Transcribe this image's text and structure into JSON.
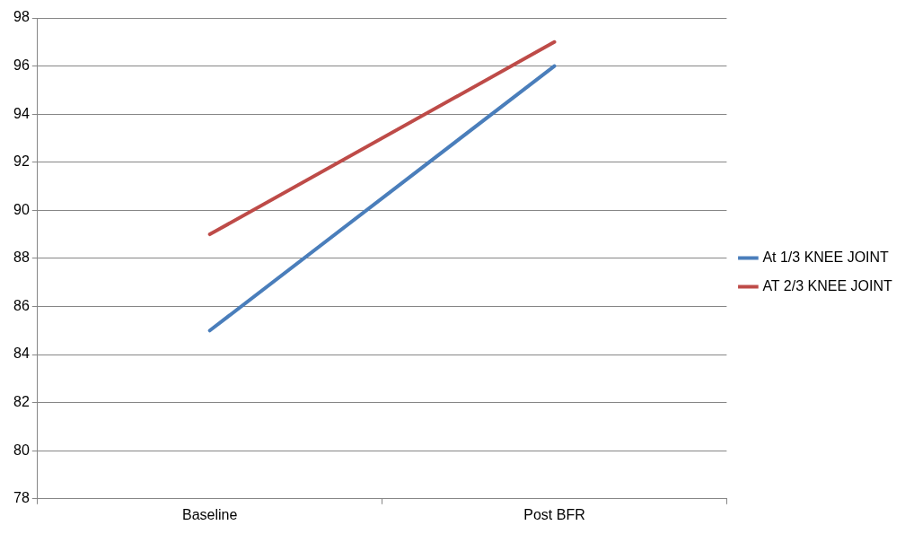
{
  "chart_data": {
    "type": "line",
    "categories": [
      "Baseline",
      "Post BFR"
    ],
    "series": [
      {
        "name": "At 1/3 KNEE JOINT",
        "color": "#4a7ebb",
        "values": [
          85,
          96
        ]
      },
      {
        "name": "AT 2/3 KNEE JOINT",
        "color": "#be4b48",
        "values": [
          89,
          97
        ]
      }
    ],
    "ylim": [
      78,
      98
    ],
    "yticks": [
      78,
      80,
      82,
      84,
      86,
      88,
      90,
      92,
      94,
      96,
      98
    ],
    "grid": "y",
    "legend": "right",
    "marker": "none",
    "line_style": "solid"
  }
}
